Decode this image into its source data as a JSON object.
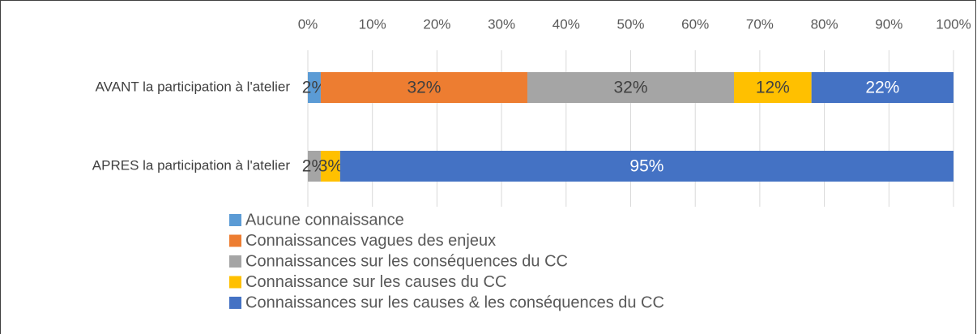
{
  "chart_data": {
    "type": "stacked_barh",
    "categories": [
      "AVANT la participation à l'atelier",
      "APRES la participation à l'atelier"
    ],
    "series": [
      {
        "name": "Aucune connaissance",
        "color": "#5b9bd5",
        "values": [
          2,
          null
        ],
        "value_labels": [
          "2%",
          null
        ]
      },
      {
        "name": "Connaissances vagues des enjeux",
        "color": "#ed7d31",
        "values": [
          32,
          null
        ],
        "value_labels": [
          "32%",
          null
        ]
      },
      {
        "name": "Connaissances sur les conséquences du CC",
        "color": "#a5a5a5",
        "values": [
          32,
          2
        ],
        "value_labels": [
          "32%",
          "2%"
        ]
      },
      {
        "name": "Connaissance sur les causes du CC",
        "color": "#ffc000",
        "values": [
          12,
          3
        ],
        "value_labels": [
          "12%",
          "3%"
        ]
      },
      {
        "name": "Connaissances sur les causes & les conséquences du CC",
        "color": "#4472c4",
        "values": [
          22,
          95
        ],
        "value_labels": [
          "22%",
          "95%"
        ]
      }
    ],
    "xlim": [
      0,
      100
    ],
    "xticks": [
      {
        "value": 0,
        "label": "0%"
      },
      {
        "value": 10,
        "label": "10%"
      },
      {
        "value": 20,
        "label": "20%"
      },
      {
        "value": 30,
        "label": "30%"
      },
      {
        "value": 40,
        "label": "40%"
      },
      {
        "value": 50,
        "label": "50%"
      },
      {
        "value": 60,
        "label": "60%"
      },
      {
        "value": 70,
        "label": "70%"
      },
      {
        "value": 80,
        "label": "80%"
      },
      {
        "value": 90,
        "label": "90%"
      },
      {
        "value": 100,
        "label": "100%"
      }
    ],
    "grid": true,
    "legend": "bottom"
  }
}
